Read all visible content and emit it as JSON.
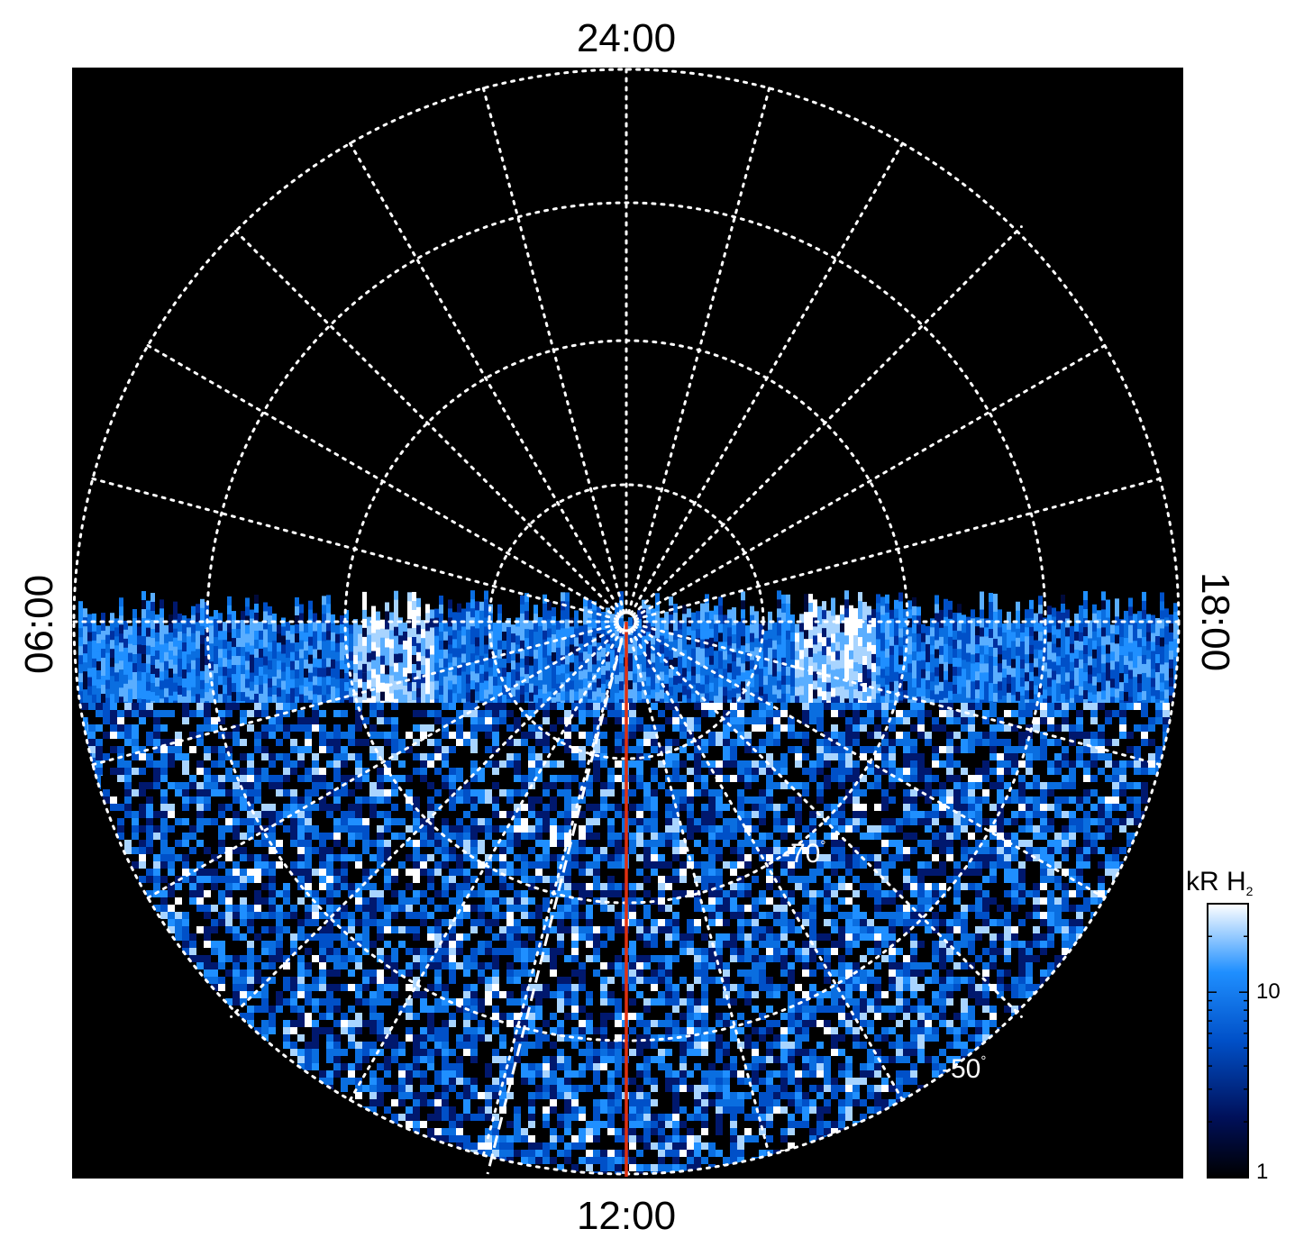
{
  "local_time_labels": {
    "top": "24:00",
    "bottom": "12:00",
    "left": "06:00",
    "right": "18:00"
  },
  "latitude_labels": [
    {
      "value": "-70",
      "degree_symbol": "°"
    },
    {
      "value": "-50",
      "degree_symbol": "°"
    }
  ],
  "colorbar": {
    "title_main": "kR H",
    "title_subscript": "2",
    "scale": "log",
    "range": [
      1,
      30
    ],
    "tick_labels": [
      "10",
      "1"
    ],
    "colors": [
      "#000000",
      "#00105a",
      "#0050c8",
      "#1f8fff",
      "#ffffff"
    ]
  },
  "map": {
    "projection": "polar",
    "background": "#000000",
    "grid_color": "#ffffff",
    "grid_style": "dotted",
    "meridian_spacing_hours": 1,
    "latitude_circles": [
      -50,
      -60,
      -70,
      -80
    ],
    "illuminated_half": "noon",
    "noon_meridian_color": "#e03010",
    "extra_meridian_style": "dashed"
  }
}
